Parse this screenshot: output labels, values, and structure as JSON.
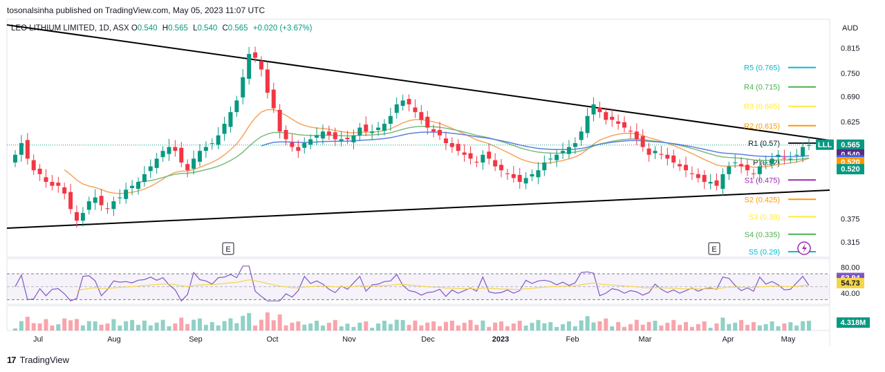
{
  "header": {
    "publisher_line": "tosonalsinha published on TradingView.com, May 05, 2023 11:07 UTC",
    "symbol": "LEO LITHIUM LIMITED, 1D, ASX",
    "o_label": "O",
    "o_value": "0.540",
    "h_label": "H",
    "h_value": "0.565",
    "l_label": "L",
    "l_value": "0.540",
    "c_label": "C",
    "c_value": "0.565",
    "change": "+0.020 (+3.67%)",
    "currency": "AUD"
  },
  "footer": {
    "brand": "TradingView",
    "logo_mark": "17"
  },
  "colors": {
    "up": "#089981",
    "down": "#f23645",
    "ema_fast": "#f7a35c",
    "ema_slow": "#7cba7c",
    "ma_blue": "#5b7fe0",
    "rsi": "#7e57c2",
    "rsi_ma": "#f5d547",
    "r5": "#00bcd4",
    "r4": "#4caf50",
    "r3": "#ffeb3b",
    "r2": "#ff9800",
    "r1": "#131722",
    "s1": "#9c27b0",
    "s2": "#ff9800",
    "s3": "#ffeb3b",
    "s4": "#4caf50",
    "s5": "#00bcd4"
  },
  "chart_data": {
    "type": "candlestick",
    "price_axis": {
      "ticks": [
        "0.815",
        "0.750",
        "0.690",
        "0.625",
        "0.560",
        "0.375",
        "0.315"
      ],
      "range": [
        0.29,
        0.85
      ]
    },
    "x_ticks": [
      "Jul",
      "Aug",
      "Sep",
      "Oct",
      "Nov",
      "Dec",
      "2023",
      "Feb",
      "Mar",
      "Apr",
      "May"
    ],
    "pivots": [
      {
        "name": "R5",
        "label": "R5 (0.765)",
        "value": 0.765
      },
      {
        "name": "R4",
        "label": "R4 (0.715)",
        "value": 0.715
      },
      {
        "name": "R3",
        "label": "R3 (0.665)",
        "value": 0.665
      },
      {
        "name": "R2",
        "label": "R2 (0.615)",
        "value": 0.615
      },
      {
        "name": "R1",
        "label": "R1 (0.57)",
        "value": 0.57
      },
      {
        "name": "P",
        "label": "P (0.52)",
        "value": 0.52
      },
      {
        "name": "S1",
        "label": "S1 (0.475)",
        "value": 0.475
      },
      {
        "name": "S2",
        "label": "S2 (0.425)",
        "value": 0.425
      },
      {
        "name": "S3",
        "label": "S3 (0.38)",
        "value": 0.38
      },
      {
        "name": "S4",
        "label": "S4 (0.335)",
        "value": 0.335
      },
      {
        "name": "S5",
        "label": "S5 (0.29)",
        "value": 0.29
      }
    ],
    "price_badges": [
      {
        "text": "LLL",
        "color": "#089981"
      },
      {
        "text": "0.565",
        "color": "#089981"
      },
      {
        "text": "0.540",
        "color": "#5b2a86"
      },
      {
        "text": "0.525",
        "color": "#2962ff"
      },
      {
        "text": "0.520",
        "color": "#ff9800"
      },
      {
        "text": "0.520",
        "color": "#089981"
      }
    ],
    "earnings_markers": [
      "E",
      "E"
    ],
    "rsi": {
      "ticks": [
        "80.00",
        "40.00"
      ],
      "value": "62.94",
      "ma_value": "54.73"
    },
    "volume_badge": "4.318M",
    "close_series": [
      0.54,
      0.57,
      0.53,
      0.5,
      0.49,
      0.47,
      0.46,
      0.46,
      0.44,
      0.4,
      0.37,
      0.39,
      0.42,
      0.43,
      0.41,
      0.4,
      0.42,
      0.43,
      0.45,
      0.46,
      0.47,
      0.49,
      0.51,
      0.53,
      0.55,
      0.56,
      0.55,
      0.52,
      0.5,
      0.53,
      0.55,
      0.56,
      0.57,
      0.59,
      0.62,
      0.65,
      0.68,
      0.74,
      0.8,
      0.79,
      0.76,
      0.7,
      0.66,
      0.6,
      0.58,
      0.56,
      0.55,
      0.57,
      0.58,
      0.59,
      0.6,
      0.59,
      0.58,
      0.58,
      0.58,
      0.59,
      0.61,
      0.6,
      0.6,
      0.61,
      0.62,
      0.64,
      0.67,
      0.68,
      0.67,
      0.65,
      0.63,
      0.61,
      0.6,
      0.59,
      0.57,
      0.56,
      0.55,
      0.54,
      0.53,
      0.52,
      0.54,
      0.53,
      0.51,
      0.5,
      0.49,
      0.48,
      0.47,
      0.48,
      0.49,
      0.5,
      0.52,
      0.53,
      0.54,
      0.55,
      0.56,
      0.57,
      0.6,
      0.64,
      0.67,
      0.65,
      0.63,
      0.63,
      0.62,
      0.61,
      0.6,
      0.58,
      0.56,
      0.54,
      0.55,
      0.54,
      0.53,
      0.52,
      0.51,
      0.5,
      0.49,
      0.48,
      0.47,
      0.47,
      0.46,
      0.49,
      0.51,
      0.52,
      0.51,
      0.5,
      0.49,
      0.51,
      0.52,
      0.53,
      0.54,
      0.53,
      0.53,
      0.54,
      0.56,
      0.565
    ]
  }
}
